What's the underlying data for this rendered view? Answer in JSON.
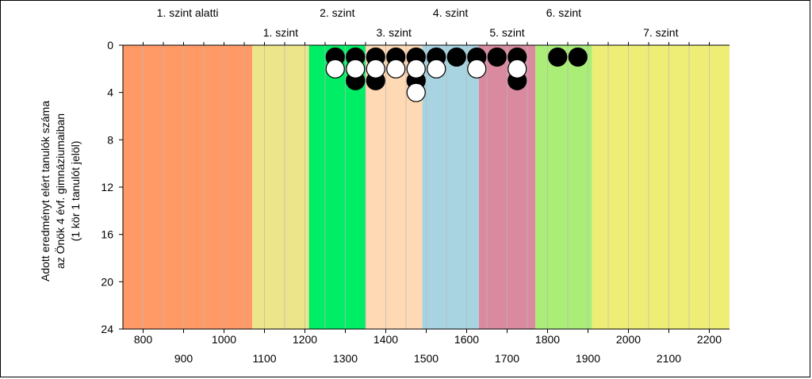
{
  "chart_data": {
    "type": "scatter",
    "ylabel_lines": [
      "Adott eredményt elért tanulók száma",
      "az Önök 4 évf. gimnáziumaiban",
      "(1 kör 1 tanulót jelöl)"
    ],
    "xlim": [
      750,
      2250
    ],
    "ylim": [
      0,
      24
    ],
    "y_inverted": true,
    "y_ticks": [
      0,
      4,
      8,
      12,
      16,
      20,
      24
    ],
    "x_ticks_top_row": [
      800,
      1000,
      1200,
      1400,
      1600,
      1800,
      2000,
      2200
    ],
    "x_ticks_bottom_row": [
      900,
      1100,
      1300,
      1500,
      1700,
      1900,
      2100
    ],
    "bands": [
      {
        "label": "1. szint alatti",
        "from": 750,
        "to": 1070,
        "color": "#ff9966",
        "label_row": "upper"
      },
      {
        "label": "1. szint",
        "from": 1070,
        "to": 1210,
        "color": "#ede58a",
        "label_row": "lower"
      },
      {
        "label": "2. szint",
        "from": 1210,
        "to": 1350,
        "color": "#00ee66",
        "label_row": "upper"
      },
      {
        "label": "3. szint",
        "from": 1350,
        "to": 1490,
        "color": "#ffd9b3",
        "label_row": "lower"
      },
      {
        "label": "4. szint",
        "from": 1490,
        "to": 1630,
        "color": "#a8d4e2",
        "label_row": "upper"
      },
      {
        "label": "5. szint",
        "from": 1630,
        "to": 1770,
        "color": "#d98a9e",
        "label_row": "lower"
      },
      {
        "label": "6. szint",
        "from": 1770,
        "to": 1910,
        "color": "#aaee77",
        "label_row": "upper"
      },
      {
        "label": "7. szint",
        "from": 1910,
        "to": 2250,
        "color": "#eeee77",
        "label_row": "lower"
      }
    ],
    "series": [
      {
        "color": "#000000",
        "points": [
          [
            1275,
            1
          ],
          [
            1325,
            1
          ],
          [
            1375,
            1
          ],
          [
            1425,
            1
          ],
          [
            1475,
            1
          ],
          [
            1525,
            1
          ],
          [
            1575,
            1
          ],
          [
            1625,
            1
          ],
          [
            1675,
            1
          ],
          [
            1725,
            1
          ],
          [
            1825,
            1
          ],
          [
            1875,
            1
          ],
          [
            1325,
            3
          ],
          [
            1375,
            3
          ],
          [
            1475,
            3
          ],
          [
            1725,
            3
          ]
        ]
      },
      {
        "color": "#ffffff",
        "points": [
          [
            1275,
            2
          ],
          [
            1325,
            2
          ],
          [
            1375,
            2
          ],
          [
            1425,
            2
          ],
          [
            1475,
            2
          ],
          [
            1525,
            2
          ],
          [
            1625,
            2
          ],
          [
            1725,
            2
          ],
          [
            1475,
            4
          ]
        ]
      }
    ]
  }
}
